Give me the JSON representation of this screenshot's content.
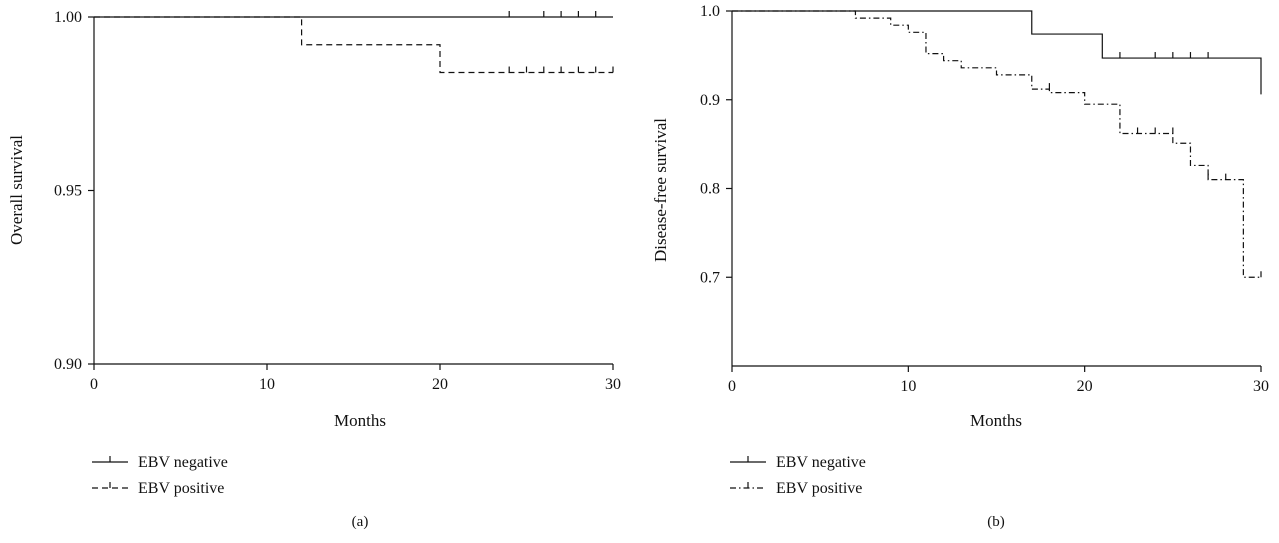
{
  "chart_data": [
    {
      "type": "line",
      "panel_label": "(a)",
      "xlabel": "Months",
      "ylabel": "Overall survival",
      "xlim": [
        0,
        30
      ],
      "ylim": [
        0.9,
        1.0
      ],
      "xticks": [
        0,
        10,
        20,
        30
      ],
      "xtick_labels": [
        "0",
        "10",
        "20",
        "30"
      ],
      "yticks": [
        0.9,
        0.95,
        1.0
      ],
      "ytick_labels": [
        "0.90",
        "0.95",
        "1.00"
      ],
      "grid": false,
      "legend_placement": "bottom-left",
      "series": [
        {
          "name": "EBV negative",
          "line_style": "solid",
          "step_x": [
            0,
            30
          ],
          "step_y": [
            1.0,
            1.0
          ],
          "censored_x": [
            24,
            26,
            27,
            28,
            29
          ],
          "censored_y": [
            1.0,
            1.0,
            1.0,
            1.0,
            1.0
          ]
        },
        {
          "name": "EBV positive",
          "line_style": "dashed",
          "step_x": [
            0,
            12,
            20,
            30
          ],
          "step_y": [
            1.0,
            0.992,
            0.984,
            0.984
          ],
          "censored_x": [
            24,
            25,
            26,
            27,
            28,
            29,
            30
          ],
          "censored_y": [
            0.984,
            0.984,
            0.984,
            0.984,
            0.984,
            0.984,
            0.984
          ]
        }
      ]
    },
    {
      "type": "line",
      "panel_label": "(b)",
      "xlabel": "Months",
      "ylabel": "Disease-free survival",
      "xlim": [
        0,
        30
      ],
      "ylim": [
        0.6,
        1.0
      ],
      "xticks": [
        0,
        10,
        20,
        30
      ],
      "xtick_labels": [
        "0",
        "10",
        "20",
        "30"
      ],
      "yticks": [
        0.7,
        0.8,
        0.9,
        1.0
      ],
      "ytick_labels": [
        "0.7",
        "0.8",
        "0.9",
        "1.0"
      ],
      "grid": false,
      "legend_placement": "bottom-left",
      "series": [
        {
          "name": "EBV negative",
          "line_style": "solid",
          "step_x": [
            0,
            17,
            21,
            30
          ],
          "step_y": [
            1.0,
            0.974,
            0.947,
            0.906
          ],
          "censored_x": [
            22,
            24,
            25,
            26,
            27
          ],
          "censored_y": [
            0.947,
            0.947,
            0.947,
            0.947,
            0.947
          ]
        },
        {
          "name": "EBV positive",
          "line_style": "dash-dot",
          "step_x": [
            0,
            7,
            9,
            10,
            11,
            12,
            13,
            15,
            17,
            18,
            20,
            22,
            25,
            26,
            27,
            29,
            30
          ],
          "step_y": [
            1.0,
            0.992,
            0.984,
            0.976,
            0.952,
            0.944,
            0.936,
            0.928,
            0.912,
            0.908,
            0.895,
            0.862,
            0.851,
            0.826,
            0.81,
            0.7,
            0.7
          ],
          "censored_x": [
            18,
            23,
            24,
            25,
            27,
            28,
            30
          ],
          "censored_y": [
            0.912,
            0.862,
            0.862,
            0.862,
            0.81,
            0.81,
            0.7
          ]
        }
      ]
    }
  ]
}
